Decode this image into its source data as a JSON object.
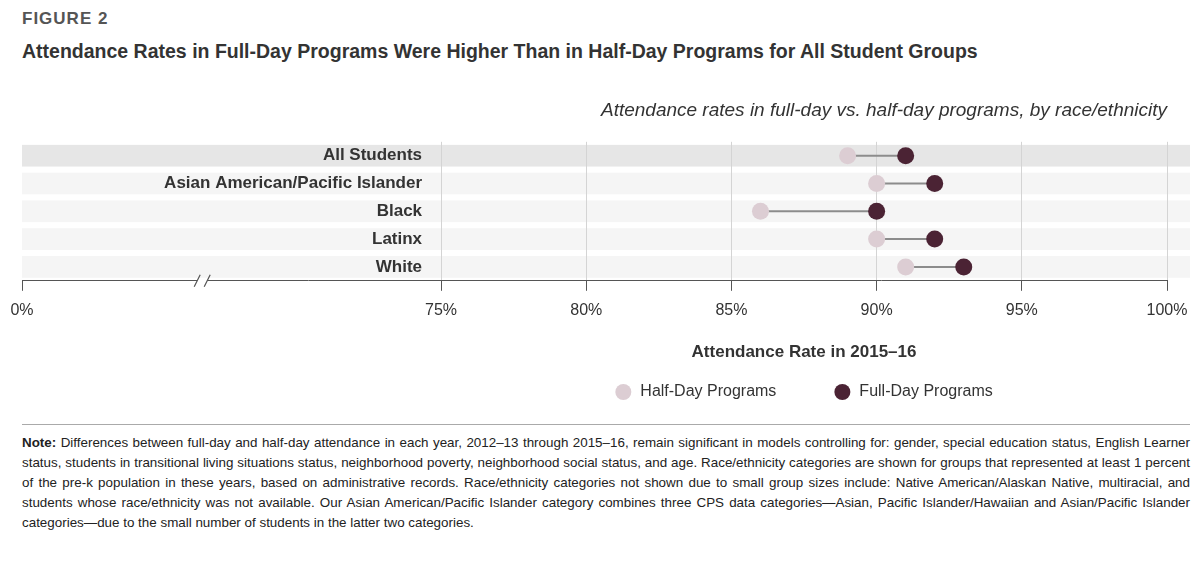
{
  "chart_data": {
    "type": "dumbbell",
    "figure_label": "FIGURE 2",
    "title": "Attendance Rates in Full-Day Programs Were Higher Than in Half-Day Programs for All Student Groups",
    "subtitle": "Attendance rates in full-day vs. half-day programs, by race/ethnicity",
    "x_label": "Attendance Rate in 2015–16",
    "orientation": "horizontal",
    "categories": [
      "All Students",
      "Asian American/Pacific Islander",
      "Black",
      "Latinx",
      "White"
    ],
    "series": [
      {
        "name": "Half-Day Programs",
        "color": "#dccdd3",
        "marker": "circle",
        "values": [
          89,
          90,
          86,
          90,
          91
        ]
      },
      {
        "name": "Full-Day Programs",
        "color": "#4b2334",
        "marker": "circle",
        "values": [
          91,
          92,
          90,
          92,
          93
        ]
      }
    ],
    "xlim": [
      0,
      100
    ],
    "xticks": [
      {
        "value": 0,
        "label": "0%"
      },
      {
        "value": 75,
        "label": "75%"
      },
      {
        "value": 80,
        "label": "80%"
      },
      {
        "value": 85,
        "label": "85%"
      },
      {
        "value": 90,
        "label": "90%"
      },
      {
        "value": 95,
        "label": "95%"
      },
      {
        "value": 100,
        "label": "100%"
      }
    ],
    "grid": true,
    "legend": "bottom"
  },
  "note": {
    "label": "Note:",
    "text": "Differences between full-day and half-day attendance in each year, 2012–13 through 2015–16, remain significant in models controlling for: gender, special education status, English Learner status, students in transitional living situations status, neighborhood poverty, neighborhood social status, and age. Race/ethnicity categories are shown for groups that represented at least 1 percent of the pre-k population in these years, based on administrative records. Race/ethnicity categories not shown due to small group sizes include: Native American/Alaskan Native, multiracial, and students whose race/ethnicity was not available. Our Asian American/Pacific Islander category combines three CPS data categories—Asian, Pacific Islander/Hawaiian and Asian/Pacific Islander categories—due to the small number of students in the latter two categories."
  }
}
